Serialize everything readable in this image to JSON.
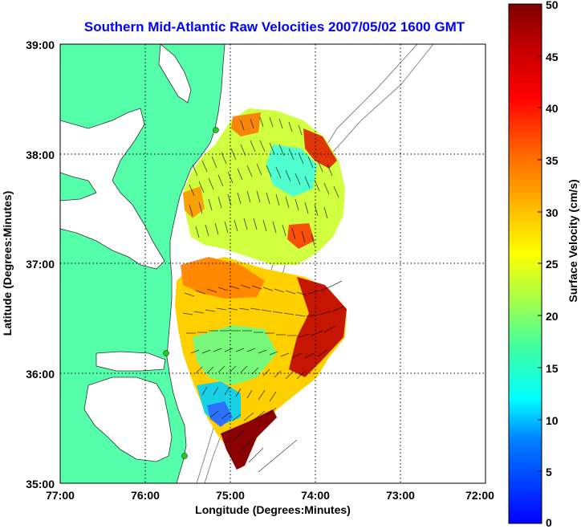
{
  "title": "Southern Mid-Atlantic Raw Velocities 2007/05/02 1600 GMT",
  "chart_data": {
    "type": "map",
    "xlabel": "Longitude (Degrees:Minutes)",
    "ylabel": "Latitude (Degrees:Minutes)",
    "x_ticks": [
      "77:00",
      "76:00",
      "75:00",
      "74:00",
      "73:00",
      "72:00"
    ],
    "y_ticks": [
      "39:00",
      "38:00",
      "37:00",
      "36:00",
      "35:00"
    ],
    "x_range": [
      -77,
      -72
    ],
    "y_range": [
      35,
      39
    ],
    "grid": true,
    "colorbar": {
      "label": "Surface Velocity (cm/s)",
      "ticks": [
        "50",
        "45",
        "40",
        "35",
        "30",
        "25",
        "20",
        "15",
        "10",
        "5",
        "0"
      ],
      "min": 0,
      "max": 50,
      "colormap": [
        "#0000ff",
        "#00c0ff",
        "#00ffff",
        "#80ff80",
        "#ffff00",
        "#ff8000",
        "#ff0000",
        "#800000"
      ]
    },
    "land_color": "#55ffaa",
    "stations_color": "#22cc22"
  }
}
